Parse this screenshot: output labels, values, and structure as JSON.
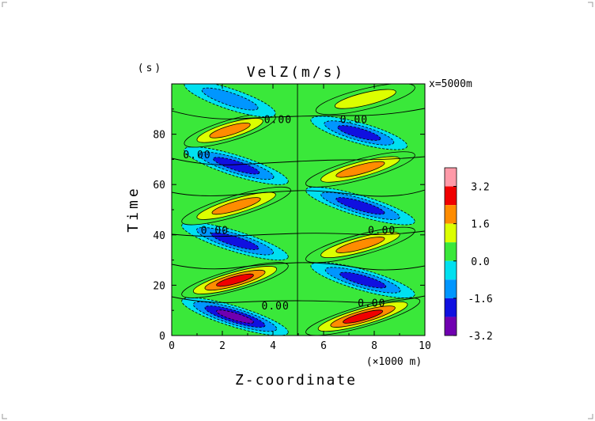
{
  "chart_data": {
    "type": "heatmap",
    "title": "VelZ(m/s)",
    "ylabel": "Time",
    "yunit": "(s)",
    "xlabel": "Z-coordinate",
    "xunit": "(×1000 m)",
    "annotation": "x=5000m",
    "xlim": [
      0,
      10
    ],
    "ylim": [
      0,
      100
    ],
    "xticks": [
      "0",
      "2",
      "4",
      "6",
      "8",
      "10"
    ],
    "yticks": [
      "0",
      "20",
      "40",
      "60",
      "80"
    ],
    "colorbar": {
      "ticks": [
        "3.2",
        "1.6",
        "0.0",
        "-1.6",
        "-3.2"
      ],
      "bins": [
        {
          "lower": 3.2,
          "color": "#ff9aa8"
        },
        {
          "lower": 2.4,
          "color": "#f00000"
        },
        {
          "lower": 1.6,
          "color": "#ff8c00"
        },
        {
          "lower": 0.8,
          "color": "#dcff00"
        },
        {
          "lower": 0.0,
          "color": "#3ae83a"
        },
        {
          "lower": -0.8,
          "color": "#00e0f0"
        },
        {
          "lower": -1.6,
          "color": "#0096ff"
        },
        {
          "lower": -2.4,
          "color": "#1010e0"
        },
        {
          "lower": -3.2,
          "color": "#7000b0"
        }
      ]
    },
    "contour_labels": [
      {
        "text": "0.00",
        "x": 4.2,
        "y": 86
      },
      {
        "text": "0.00",
        "x": 7.2,
        "y": 86
      },
      {
        "text": "0.00",
        "x": 1.0,
        "y": 72
      },
      {
        "text": "0.00",
        "x": 1.7,
        "y": 42
      },
      {
        "text": "0.00",
        "x": 8.3,
        "y": 42
      },
      {
        "text": "0.00",
        "x": 4.1,
        "y": 12
      },
      {
        "text": "0.00",
        "x": 7.9,
        "y": 13
      }
    ],
    "blobs": [
      {
        "x1": 0.7,
        "y1": 13,
        "x2": 4.3,
        "y2": 2,
        "peak": -3.2
      },
      {
        "x1": 5.6,
        "y1": 2,
        "x2": 9.5,
        "y2": 13,
        "peak": 3.2
      },
      {
        "x1": 0.7,
        "y1": 17,
        "x2": 4.3,
        "y2": 27,
        "peak": 2.5
      },
      {
        "x1": 5.8,
        "y1": 27,
        "x2": 9.3,
        "y2": 17,
        "peak": -2.2
      },
      {
        "x1": 0.7,
        "y1": 43,
        "x2": 4.3,
        "y2": 32,
        "peak": -1.9
      },
      {
        "x1": 5.6,
        "y1": 31,
        "x2": 9.3,
        "y2": 41,
        "peak": 1.9
      },
      {
        "x1": 0.7,
        "y1": 46,
        "x2": 4.4,
        "y2": 57,
        "peak": 1.9
      },
      {
        "x1": 5.6,
        "y1": 57,
        "x2": 9.3,
        "y2": 46,
        "peak": -1.9
      },
      {
        "x1": 0.8,
        "y1": 73,
        "x2": 4.3,
        "y2": 62,
        "peak": -2.1
      },
      {
        "x1": 5.6,
        "y1": 61,
        "x2": 9.3,
        "y2": 71,
        "peak": 1.9
      },
      {
        "x1": 0.8,
        "y1": 77,
        "x2": 3.8,
        "y2": 86,
        "peak": 1.7
      },
      {
        "x1": 5.8,
        "y1": 85,
        "x2": 9.0,
        "y2": 76,
        "peak": -1.8
      },
      {
        "x1": 0.8,
        "y1": 99,
        "x2": 3.8,
        "y2": 89,
        "peak": -1.2
      },
      {
        "x1": 6.0,
        "y1": 90,
        "x2": 9.3,
        "y2": 98,
        "peak": 1.2
      }
    ]
  }
}
